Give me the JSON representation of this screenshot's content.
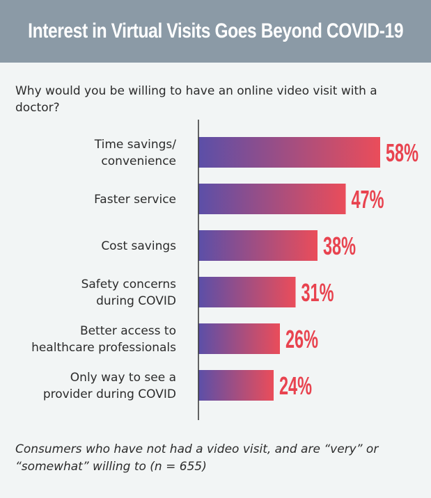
{
  "header": {
    "title": "Interest in Virtual Visits Goes Beyond COVID-19"
  },
  "question": "Why would you be willing to have an online video visit with a doctor?",
  "footnote": "Consumers who have not had a video visit, and are “very” or “somewhat” willing to (n = 655)",
  "colors": {
    "header_bg": "#8b9aa6",
    "bar_start": "#5b4fa8",
    "bar_end": "#ea4d5a",
    "value_text": "#e8434f"
  },
  "chart_data": {
    "type": "bar",
    "orientation": "horizontal",
    "categories": [
      [
        "Time savings/",
        "convenience"
      ],
      [
        "Faster service"
      ],
      [
        "Cost savings"
      ],
      [
        "Safety concerns",
        "during COVID"
      ],
      [
        "Better access to",
        "healthcare professionals"
      ],
      [
        "Only way to see a",
        "provider during COVID"
      ]
    ],
    "values": [
      58,
      47,
      38,
      31,
      26,
      24
    ],
    "value_labels": [
      "58%",
      "47%",
      "38%",
      "31%",
      "26%",
      "24%"
    ],
    "unit": "%",
    "grid": false,
    "legend": "none"
  }
}
